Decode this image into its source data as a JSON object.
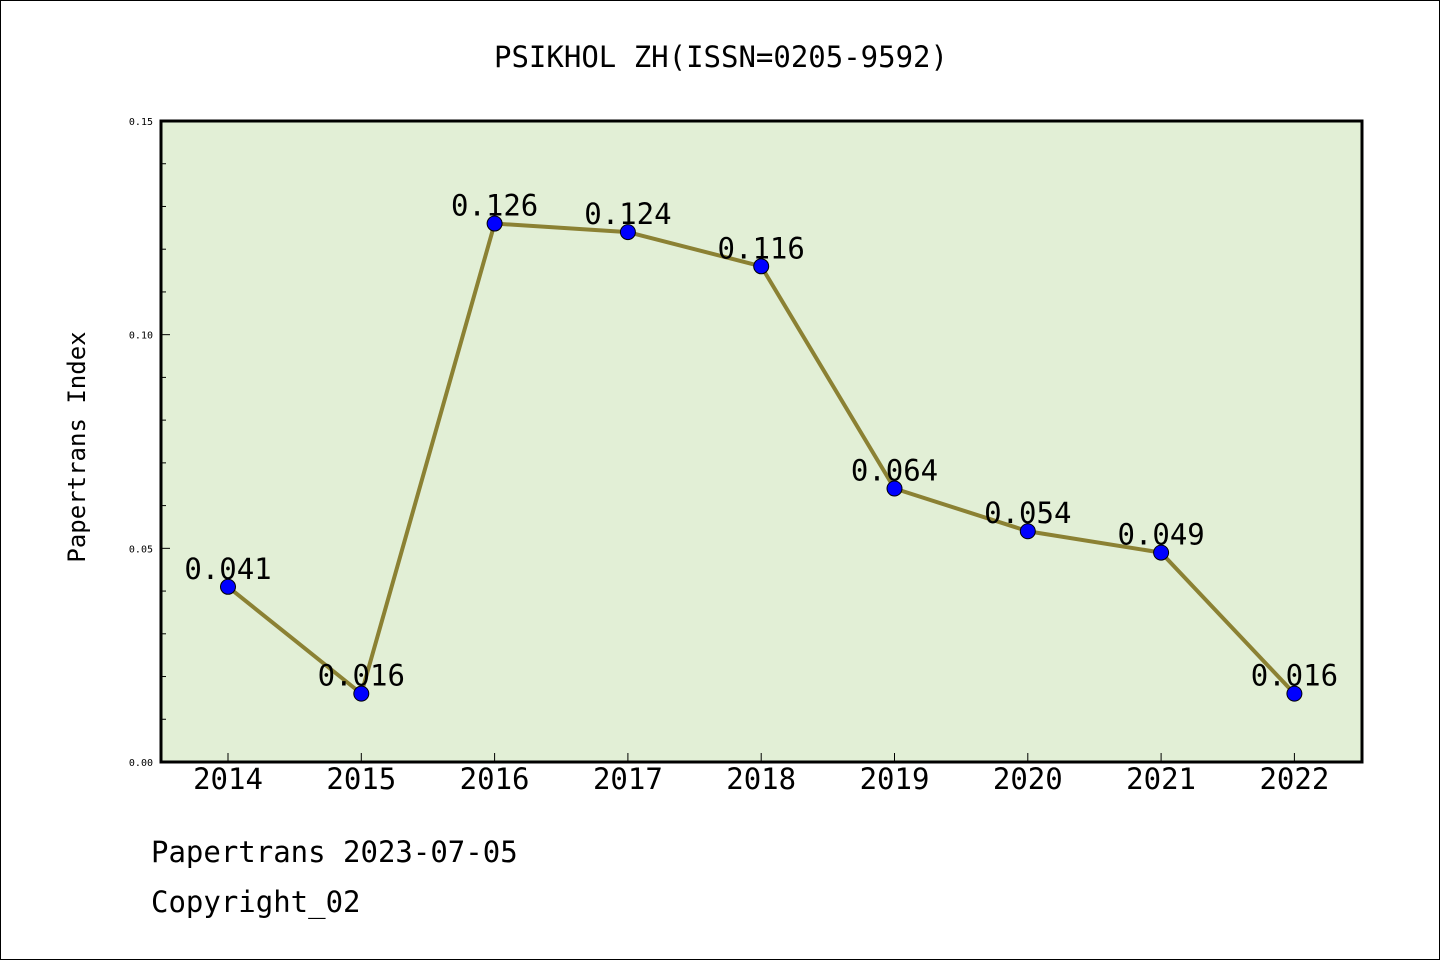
{
  "chart_data": {
    "type": "line",
    "title": "PSIKHOL ZH(ISSN=0205-9592)",
    "xlabel": "",
    "ylabel": "Papertrans Index",
    "categories": [
      "2014",
      "2015",
      "2016",
      "2017",
      "2018",
      "2019",
      "2020",
      "2021",
      "2022"
    ],
    "values": [
      0.041,
      0.016,
      0.126,
      0.124,
      0.116,
      0.064,
      0.054,
      0.049,
      0.016
    ],
    "data_labels": [
      "0.041",
      "0.016",
      "0.126",
      "0.124",
      "0.116",
      "0.064",
      "0.054",
      "0.049",
      "0.016"
    ],
    "ylim": [
      0,
      0.15
    ],
    "y_ticks": [
      "0.00",
      "0.05",
      "0.10",
      "0.15"
    ],
    "grid": false,
    "legend": "none",
    "colors": {
      "plot_background": "#e2efd6",
      "line": "#8b8133",
      "marker": "#0000ff"
    }
  },
  "footer": {
    "line1": "Papertrans 2023-07-05",
    "line2": "Copyright_02"
  }
}
